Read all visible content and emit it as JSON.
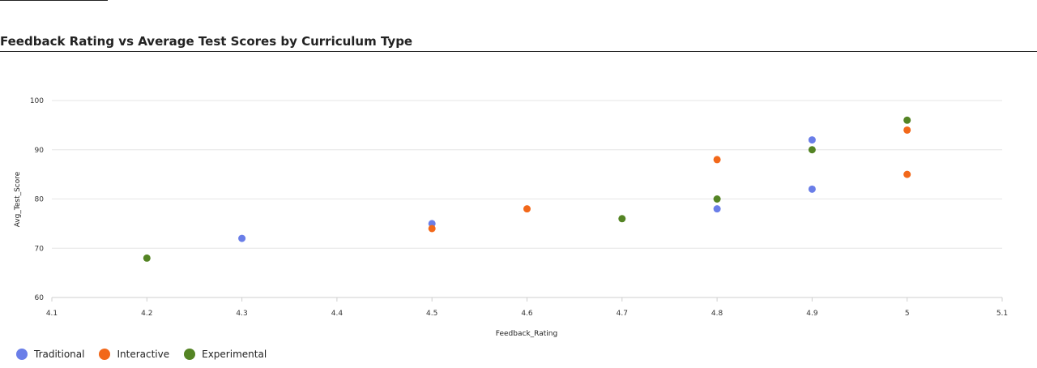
{
  "chart_data": {
    "type": "scatter",
    "title": "Feedback Rating vs Average Test Scores by Curriculum Type",
    "xlabel": "Feedback_Rating",
    "ylabel": "Avg_Test_Score",
    "xlim": [
      4.1,
      5.1
    ],
    "ylim": [
      60,
      100
    ],
    "xticks": [
      "4.1",
      "4.2",
      "4.3",
      "4.4",
      "4.5",
      "4.6",
      "4.7",
      "4.8",
      "4.9",
      "5",
      "5.1"
    ],
    "yticks": [
      "60",
      "70",
      "80",
      "90",
      "100"
    ],
    "grid": true,
    "legend_position": "bottom-left",
    "series": [
      {
        "name": "Traditional",
        "color": "#6a7ee8",
        "points": [
          {
            "x": 4.3,
            "y": 72
          },
          {
            "x": 4.5,
            "y": 75
          },
          {
            "x": 4.8,
            "y": 78
          },
          {
            "x": 4.9,
            "y": 82
          },
          {
            "x": 4.9,
            "y": 92
          }
        ]
      },
      {
        "name": "Interactive",
        "color": "#f2681a",
        "points": [
          {
            "x": 4.5,
            "y": 74
          },
          {
            "x": 4.6,
            "y": 78
          },
          {
            "x": 4.8,
            "y": 88
          },
          {
            "x": 5.0,
            "y": 85
          },
          {
            "x": 5.0,
            "y": 94
          }
        ]
      },
      {
        "name": "Experimental",
        "color": "#548424",
        "points": [
          {
            "x": 4.2,
            "y": 68
          },
          {
            "x": 4.7,
            "y": 76
          },
          {
            "x": 4.8,
            "y": 80
          },
          {
            "x": 4.9,
            "y": 90
          },
          {
            "x": 5.0,
            "y": 96
          }
        ]
      }
    ]
  }
}
